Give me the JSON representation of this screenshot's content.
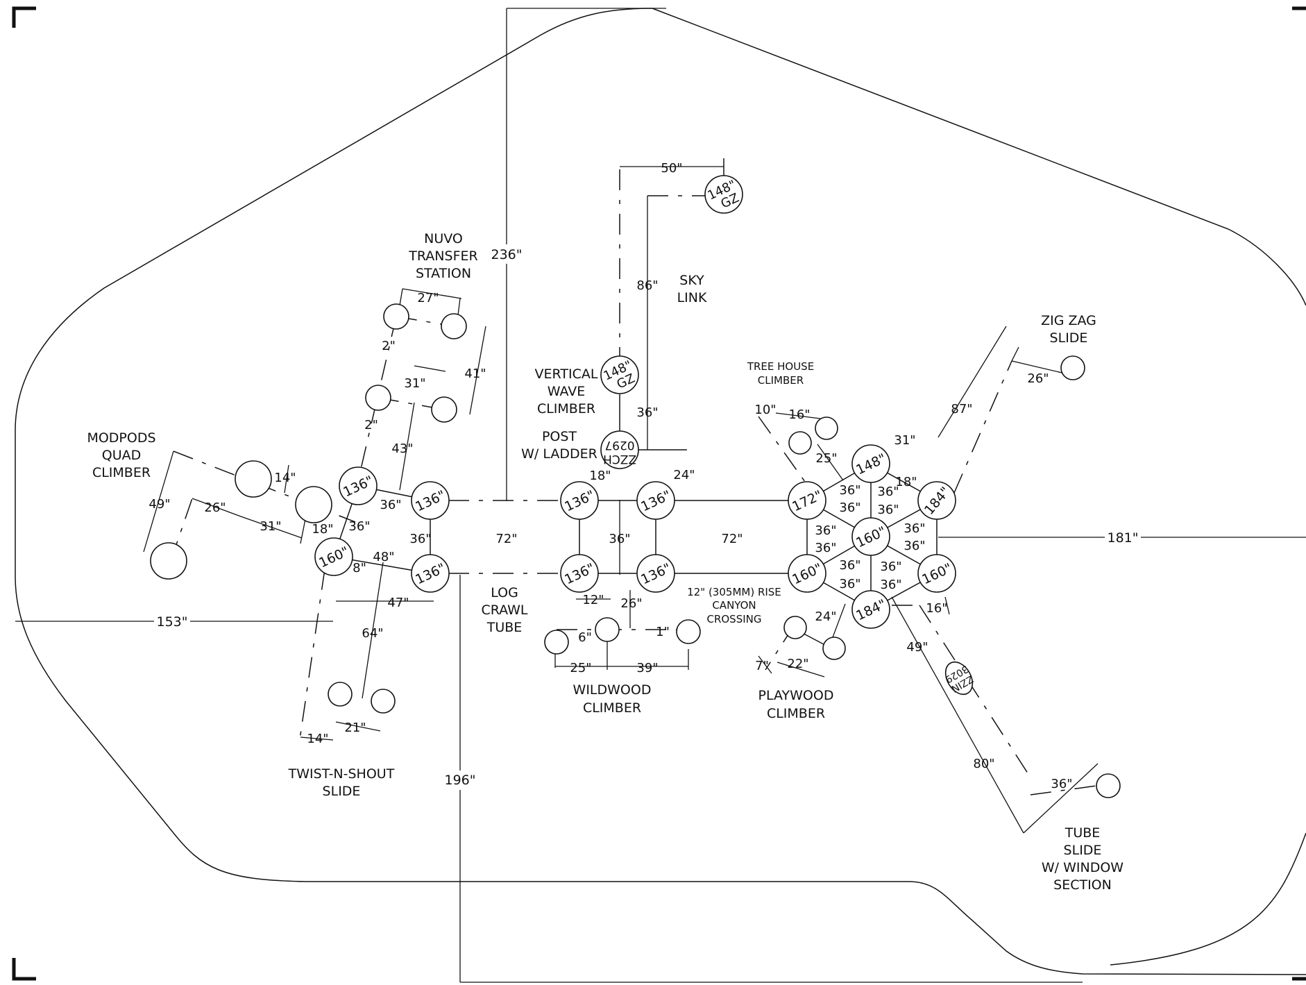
{
  "posts": {
    "p136": "136\"",
    "p160": "160\"",
    "p148": "148\"",
    "p172": "172\"",
    "p184": "184\"",
    "gz": "GZ"
  },
  "components": {
    "modpods": [
      "MODPODS",
      "QUAD",
      "CLIMBER"
    ],
    "nuvo": [
      "NUVO",
      "TRANSFER",
      "STATION"
    ],
    "twist": [
      "TWIST-N-SHOUT",
      "SLIDE"
    ],
    "log": [
      "LOG",
      "CRAWL",
      "TUBE"
    ],
    "vwave": [
      "VERTICAL",
      "WAVE",
      "CLIMBER"
    ],
    "post_ladder": [
      "POST",
      "W/ LADDER"
    ],
    "sky": [
      "SKY",
      "LINK"
    ],
    "wildwood": [
      "WILDWOOD",
      "CLIMBER"
    ],
    "treehouse": [
      "TREE HOUSE",
      "CLIMBER"
    ],
    "canyon": [
      "12\" (305MM) RISE",
      "CANYON",
      "CROSSING"
    ],
    "playwood": [
      "PLAYWOOD",
      "CLIMBER"
    ],
    "zigzag": [
      "ZIG ZAG",
      "SLIDE"
    ],
    "tube": [
      "TUBE",
      "SLIDE",
      "W/ WINDOW",
      "SECTION"
    ]
  },
  "codes": {
    "zzch": "ZZCH",
    "zzch_num": "0297",
    "zzin": "ZZIN",
    "zzin_num": "3029"
  },
  "dims": {
    "d236": "236\"",
    "d50": "50\"",
    "d86": "86\"",
    "d36": "36\"",
    "d24": "24\"",
    "d18": "18\"",
    "d72": "72\"",
    "d181": "181\"",
    "d153": "153\"",
    "d196": "196\"",
    "d27": "27\"",
    "d41": "41\"",
    "d2": "2\"",
    "d31": "31\"",
    "d43": "43\"",
    "d14": "14\"",
    "d49": "49\"",
    "d26": "26\"",
    "d48": "48\"",
    "d8": "8\"",
    "d47": "47\"",
    "d64": "64\"",
    "d21": "21\"",
    "d12": "12\"",
    "d6": "6\"",
    "d1": "1\"",
    "d25": "25\"",
    "d39": "39\"",
    "d10": "10\"",
    "d16": "16\"",
    "d22": "22\"",
    "d7": "7\"",
    "d87": "87\"",
    "d80": "80\""
  }
}
